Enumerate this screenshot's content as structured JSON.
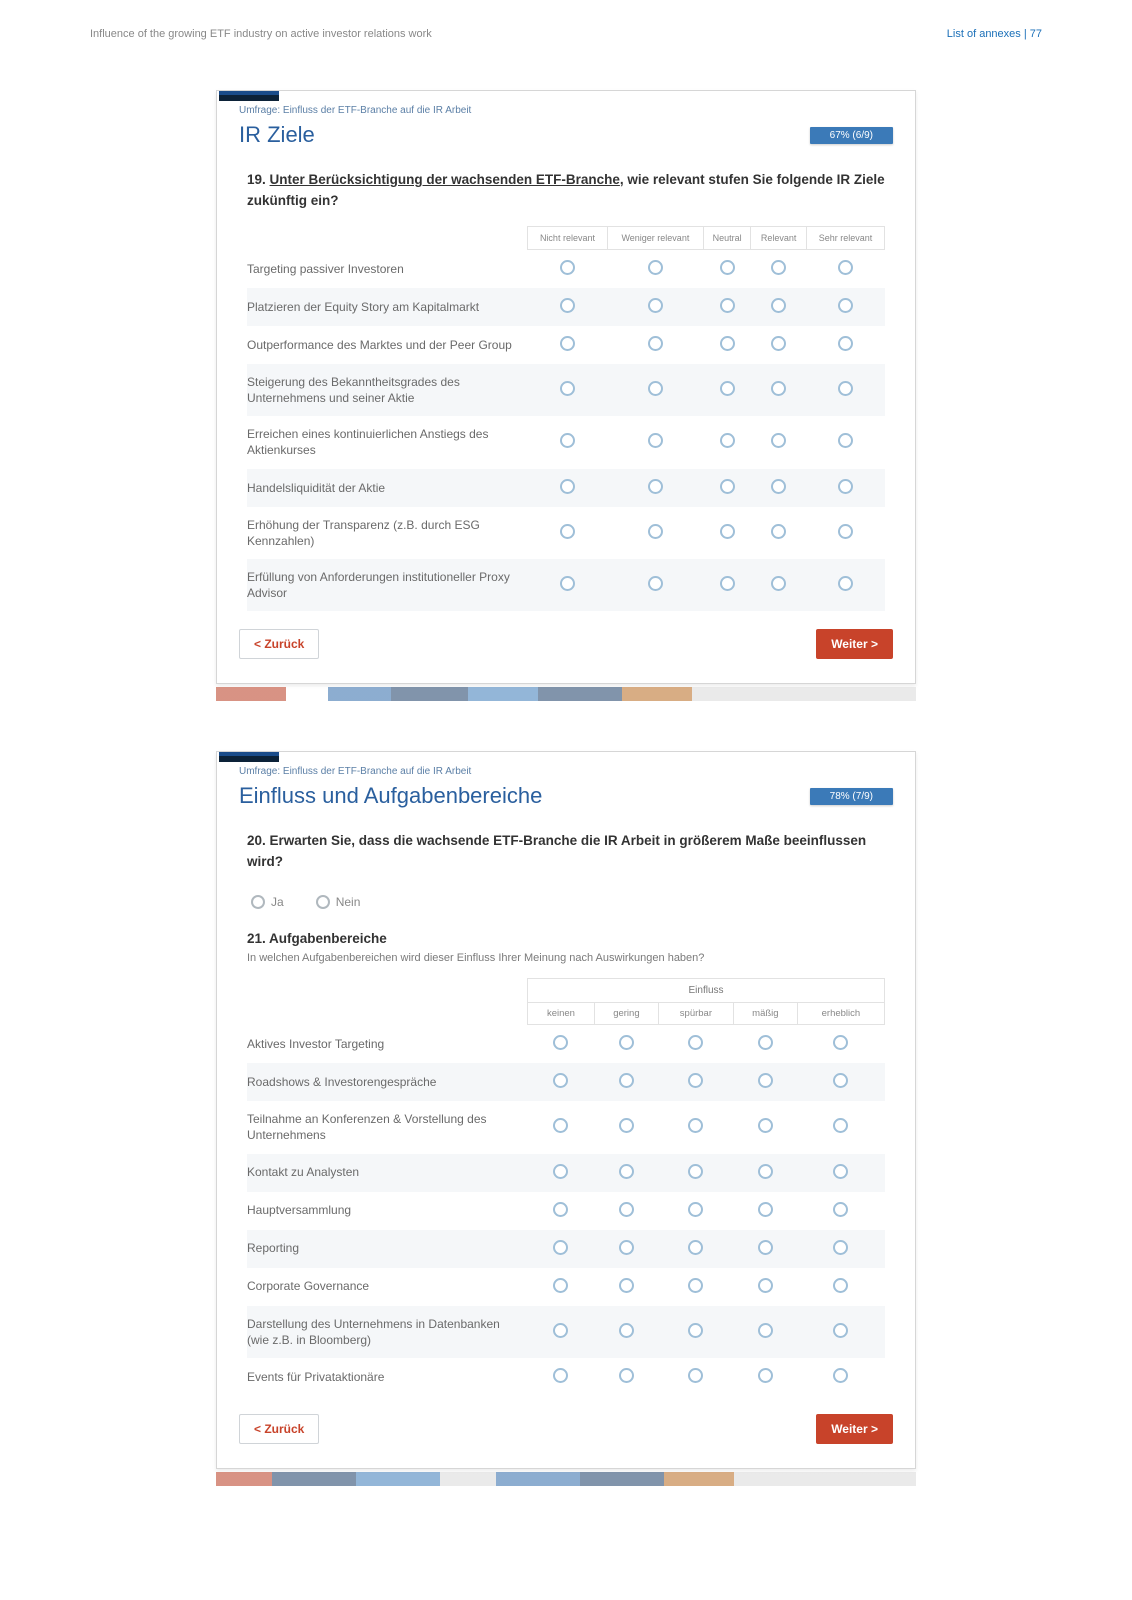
{
  "header": {
    "left": "Influence of the growing ETF industry on active investor relations work",
    "right": "List of annexes  |  77"
  },
  "survey1": {
    "subtitle": "Umfrage: Einfluss der ETF-Branche auf die IR Arbeit",
    "title": "IR Ziele",
    "progress": "67% (6/9)",
    "q19": {
      "prefix": "19.",
      "underlined": "Unter Berücksichtigung der wachsenden ETF-Branche",
      "rest": ", wie relevant stufen Sie folgende IR Ziele zukünftig ein?",
      "headers": [
        "Nicht relevant",
        "Weniger relevant",
        "Neutral",
        "Relevant",
        "Sehr relevant"
      ],
      "rows": [
        "Targeting passiver Investoren",
        "Platzieren der Equity Story am Kapitalmarkt",
        "Outperformance des Marktes und der Peer Group",
        "Steigerung des Bekanntheitsgrades des Unternehmens und seiner Aktie",
        "Erreichen eines kontinuierlichen Anstiegs des Aktienkurses",
        "Handelsliquidität der Aktie",
        "Erhöhung der Transparenz (z.B. durch ESG Kennzahlen)",
        "Erfüllung von Anforderungen institutioneller Proxy Advisor"
      ]
    },
    "back": "< Zurück",
    "next": "Weiter >"
  },
  "survey2": {
    "subtitle": "Umfrage: Einfluss der ETF-Branche auf die IR Arbeit",
    "title": "Einfluss und Aufgabenbereiche",
    "progress": "78% (7/9)",
    "q20": {
      "text": "20. Erwarten Sie, dass die wachsende ETF-Branche die IR Arbeit in größerem Maße beeinflussen wird?",
      "ja": "Ja",
      "nein": "Nein"
    },
    "q21": {
      "title": "21. Aufgabenbereiche",
      "desc": "In welchen Aufgabenbereichen wird dieser Einfluss Ihrer Meinung nach Auswirkungen haben?",
      "spanhead": "Einfluss",
      "headers": [
        "keinen",
        "gering",
        "spürbar",
        "mäßig",
        "erheblich"
      ],
      "rows": [
        "Aktives Investor Targeting",
        "Roadshows & Investorengespräche",
        "Teilnahme an Konferenzen & Vorstellung des Unternehmens",
        "Kontakt zu Analysten",
        "Hauptversammlung",
        "Reporting",
        "Corporate Governance",
        "Darstellung des Unternehmens in Datenbanken (wie z.B. in Bloomberg)",
        "Events für Privataktionäre"
      ]
    },
    "back": "< Zurück",
    "next": "Weiter >"
  }
}
